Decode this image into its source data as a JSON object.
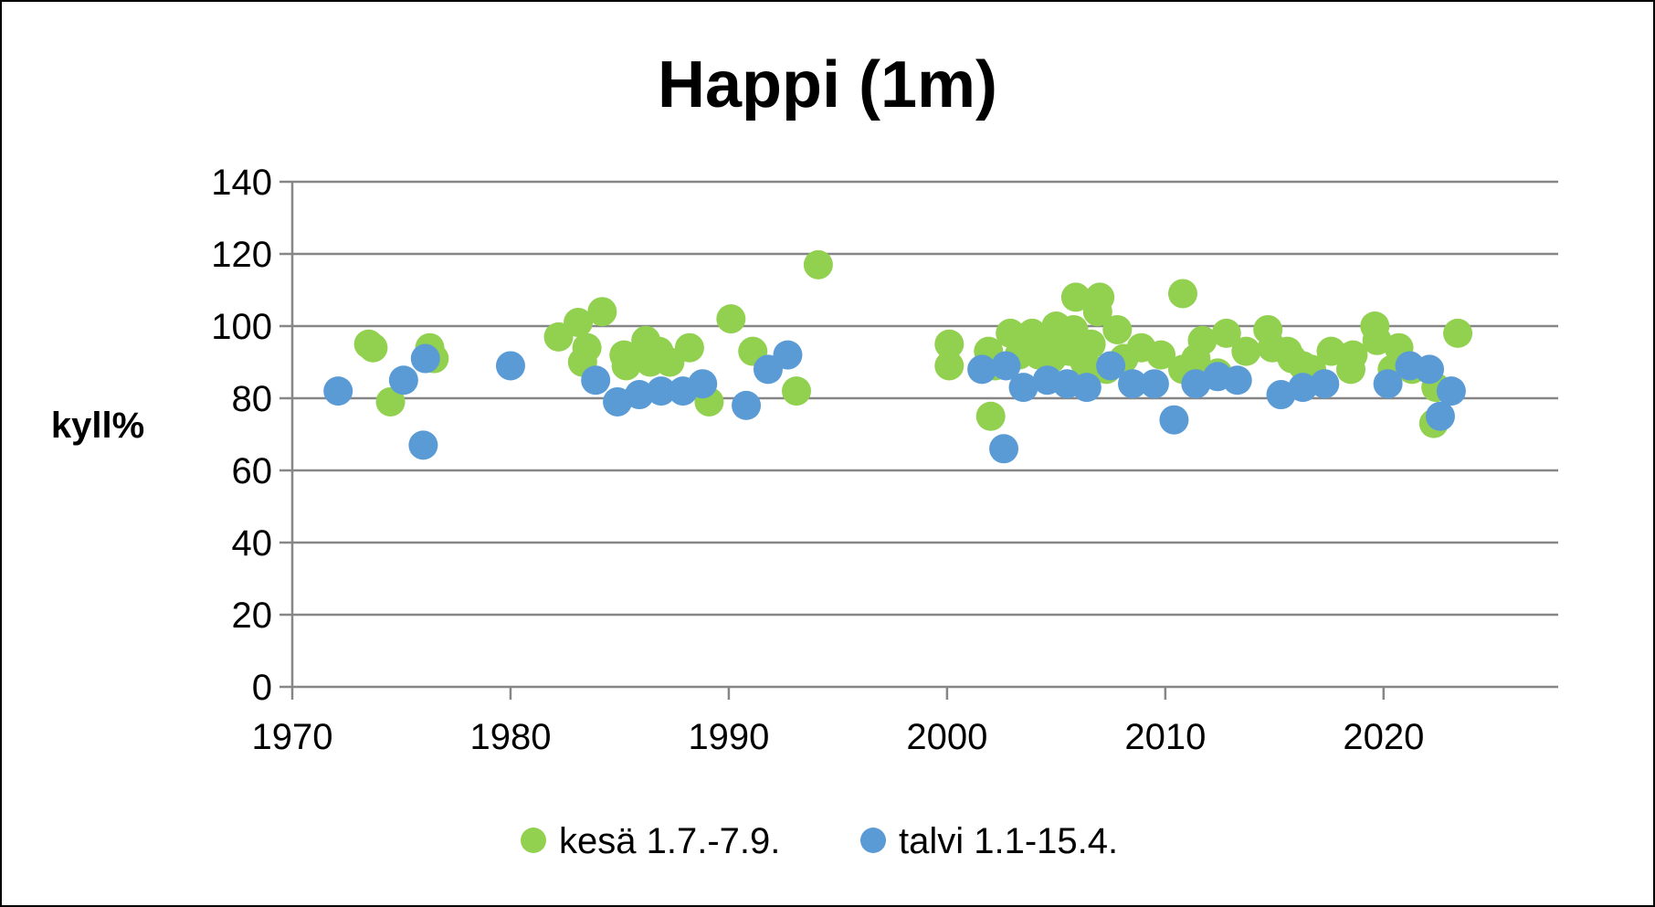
{
  "chart_data": {
    "type": "scatter",
    "title": "Happi (1m)",
    "xlabel": "",
    "ylabel": "kyll%",
    "xlim": [
      1970,
      2028
    ],
    "ylim": [
      0,
      140
    ],
    "xticks": [
      1970,
      1980,
      1990,
      2000,
      2010,
      2020
    ],
    "yticks": [
      0,
      20,
      40,
      60,
      80,
      100,
      120,
      140
    ],
    "grid": "horizontal",
    "legend_position": "bottom",
    "series": [
      {
        "name": "kesä 1.7.-7.9.",
        "color": "#92d050",
        "points": [
          [
            1973.5,
            95
          ],
          [
            1973.7,
            94
          ],
          [
            1974.5,
            79
          ],
          [
            1976.3,
            94
          ],
          [
            1976.5,
            91
          ],
          [
            1982.2,
            97
          ],
          [
            1983.1,
            101
          ],
          [
            1983.3,
            90
          ],
          [
            1983.5,
            94
          ],
          [
            1984.2,
            104
          ],
          [
            1985.2,
            92
          ],
          [
            1985.3,
            89
          ],
          [
            1986.2,
            96
          ],
          [
            1986.4,
            90
          ],
          [
            1986.8,
            93
          ],
          [
            1987.3,
            90
          ],
          [
            1988.2,
            94
          ],
          [
            1989.1,
            79
          ],
          [
            1990.1,
            102
          ],
          [
            1991.1,
            93
          ],
          [
            1993.1,
            82
          ],
          [
            1994.1,
            117
          ],
          [
            2000.1,
            95
          ],
          [
            2000.1,
            89
          ],
          [
            2001.9,
            93
          ],
          [
            2002.0,
            75
          ],
          [
            2002.2,
            89
          ],
          [
            2002.9,
            98
          ],
          [
            2003.3,
            92
          ],
          [
            2003.6,
            94
          ],
          [
            2003.9,
            98
          ],
          [
            2004.2,
            92
          ],
          [
            2004.5,
            97
          ],
          [
            2004.8,
            91
          ],
          [
            2005.0,
            100
          ],
          [
            2005.3,
            94
          ],
          [
            2005.6,
            93
          ],
          [
            2005.8,
            99
          ],
          [
            2005.9,
            108
          ],
          [
            2006.1,
            92
          ],
          [
            2006.3,
            90
          ],
          [
            2006.6,
            95
          ],
          [
            2006.9,
            104
          ],
          [
            2007.0,
            108
          ],
          [
            2007.3,
            88
          ],
          [
            2007.8,
            99
          ],
          [
            2008.1,
            91
          ],
          [
            2008.9,
            94
          ],
          [
            2009.8,
            92
          ],
          [
            2010.8,
            88
          ],
          [
            2010.8,
            109
          ],
          [
            2011.4,
            91
          ],
          [
            2011.7,
            96
          ],
          [
            2012.4,
            87
          ],
          [
            2012.8,
            98
          ],
          [
            2013.7,
            93
          ],
          [
            2014.7,
            99
          ],
          [
            2014.9,
            94
          ],
          [
            2015.6,
            93
          ],
          [
            2015.8,
            91
          ],
          [
            2016.3,
            89
          ],
          [
            2016.7,
            88
          ],
          [
            2017.6,
            93
          ],
          [
            2018.5,
            88
          ],
          [
            2018.6,
            92
          ],
          [
            2019.6,
            100
          ],
          [
            2019.7,
            96
          ],
          [
            2020.4,
            88
          ],
          [
            2020.7,
            94
          ],
          [
            2021.3,
            88
          ],
          [
            2022.3,
            73
          ],
          [
            2022.4,
            83
          ],
          [
            2023.4,
            98
          ]
        ]
      },
      {
        "name": "talvi 1.1-15.4.",
        "color": "#5b9bd5",
        "points": [
          [
            1972.1,
            82
          ],
          [
            1975.1,
            85
          ],
          [
            1976.0,
            67
          ],
          [
            1976.1,
            91
          ],
          [
            1980.0,
            89
          ],
          [
            1983.9,
            85
          ],
          [
            1984.9,
            79
          ],
          [
            1985.9,
            81
          ],
          [
            1986.9,
            82
          ],
          [
            1987.9,
            82
          ],
          [
            1988.8,
            84
          ],
          [
            1990.8,
            78
          ],
          [
            1991.8,
            88
          ],
          [
            1992.7,
            92
          ],
          [
            2001.6,
            88
          ],
          [
            2002.6,
            66
          ],
          [
            2002.7,
            89
          ],
          [
            2003.5,
            83
          ],
          [
            2004.6,
            85
          ],
          [
            2005.5,
            84
          ],
          [
            2006.4,
            83
          ],
          [
            2007.5,
            89
          ],
          [
            2008.5,
            84
          ],
          [
            2009.5,
            84
          ],
          [
            2010.4,
            74
          ],
          [
            2011.4,
            84
          ],
          [
            2012.4,
            86
          ],
          [
            2013.3,
            85
          ],
          [
            2015.3,
            81
          ],
          [
            2016.3,
            83
          ],
          [
            2017.3,
            84
          ],
          [
            2020.2,
            84
          ],
          [
            2021.2,
            89
          ],
          [
            2022.1,
            88
          ],
          [
            2022.6,
            75
          ],
          [
            2023.1,
            82
          ]
        ]
      }
    ]
  }
}
